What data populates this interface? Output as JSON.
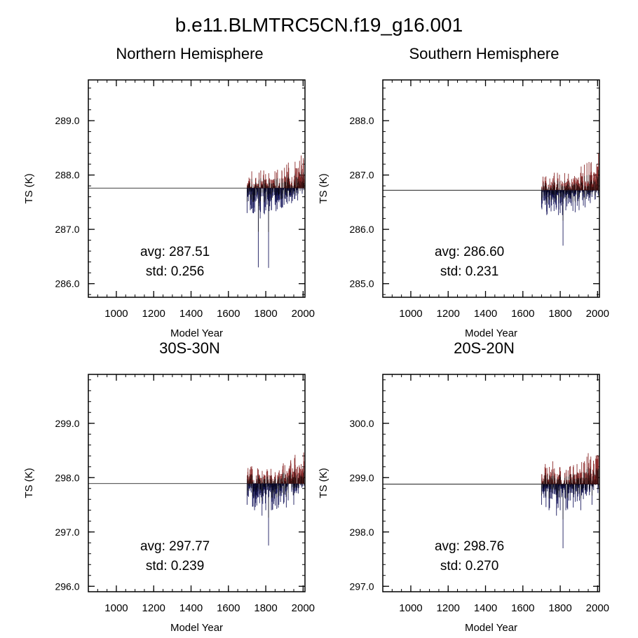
{
  "figure": {
    "title": "b.e11.BLMTRC5CN.f19_g16.001"
  },
  "chart_data": [
    {
      "type": "bar",
      "title": "Northern Hemisphere",
      "xlabel": "Model Year",
      "ylabel": "TS (K)",
      "xlim": [
        850,
        2010
      ],
      "ylim": [
        285.75,
        289.75
      ],
      "xticks": [
        1000,
        1200,
        1400,
        1600,
        1800,
        2000
      ],
      "yticks": [
        286.0,
        287.0,
        288.0,
        289.0
      ],
      "ytick_labels": [
        "286.0",
        "287.0",
        "288.0",
        "289.0"
      ],
      "reference_line": 287.76,
      "data_start_year": 1700,
      "data_end_year": 2005,
      "stats": {
        "avg_label": "avg: 287.51",
        "std_label": "std:  0.256"
      },
      "above_color": "#8b2a2a",
      "below_color": "#1a1a5e",
      "anomaly_points": [
        {
          "x": 1700,
          "y": 287.3
        },
        {
          "x": 1720,
          "y": 287.45
        },
        {
          "x": 1740,
          "y": 287.4
        },
        {
          "x": 1760,
          "y": 286.3
        },
        {
          "x": 1770,
          "y": 287.2
        },
        {
          "x": 1790,
          "y": 287.3
        },
        {
          "x": 1800,
          "y": 287.35
        },
        {
          "x": 1815,
          "y": 286.29
        },
        {
          "x": 1830,
          "y": 287.35
        },
        {
          "x": 1850,
          "y": 287.45
        },
        {
          "x": 1870,
          "y": 287.5
        },
        {
          "x": 1890,
          "y": 287.4
        },
        {
          "x": 1910,
          "y": 287.5
        },
        {
          "x": 1930,
          "y": 287.6
        },
        {
          "x": 1950,
          "y": 287.7
        },
        {
          "x": 1970,
          "y": 287.8
        },
        {
          "x": 1985,
          "y": 287.95
        },
        {
          "x": 2000,
          "y": 288.2
        }
      ]
    },
    {
      "type": "bar",
      "title": "Southern Hemisphere",
      "xlabel": "Model Year",
      "ylabel": "TS (K)",
      "xlim": [
        850,
        2010
      ],
      "ylim": [
        284.75,
        288.75
      ],
      "xticks": [
        1000,
        1200,
        1400,
        1600,
        1800,
        2000
      ],
      "yticks": [
        285.0,
        286.0,
        287.0,
        288.0
      ],
      "ytick_labels": [
        "285.0",
        "286.0",
        "287.0",
        "288.0"
      ],
      "reference_line": 286.72,
      "data_start_year": 1700,
      "data_end_year": 2005,
      "stats": {
        "avg_label": "avg: 286.60",
        "std_label": "std:  0.231"
      },
      "above_color": "#8b2a2a",
      "below_color": "#1a1a5e",
      "anomaly_points": [
        {
          "x": 1700,
          "y": 286.4
        },
        {
          "x": 1720,
          "y": 286.45
        },
        {
          "x": 1740,
          "y": 286.5
        },
        {
          "x": 1760,
          "y": 286.9
        },
        {
          "x": 1780,
          "y": 286.4
        },
        {
          "x": 1800,
          "y": 286.3
        },
        {
          "x": 1815,
          "y": 285.7
        },
        {
          "x": 1830,
          "y": 286.35
        },
        {
          "x": 1850,
          "y": 286.5
        },
        {
          "x": 1870,
          "y": 286.8
        },
        {
          "x": 1900,
          "y": 286.85
        },
        {
          "x": 1930,
          "y": 286.9
        },
        {
          "x": 1960,
          "y": 287.0
        },
        {
          "x": 1980,
          "y": 287.05
        },
        {
          "x": 1995,
          "y": 287.2
        },
        {
          "x": 2005,
          "y": 287.4
        }
      ]
    },
    {
      "type": "bar",
      "title": "30S-30N",
      "xlabel": "Model Year",
      "ylabel": "TS (K)",
      "xlim": [
        850,
        2010
      ],
      "ylim": [
        295.9,
        299.9
      ],
      "xticks": [
        1000,
        1200,
        1400,
        1600,
        1800,
        2000
      ],
      "yticks": [
        296.0,
        297.0,
        298.0,
        299.0
      ],
      "ytick_labels": [
        "296.0",
        "297.0",
        "298.0",
        "299.0"
      ],
      "reference_line": 297.89,
      "data_start_year": 1700,
      "data_end_year": 2005,
      "stats": {
        "avg_label": "avg: 297.77",
        "std_label": "std:  0.239"
      },
      "above_color": "#8b2a2a",
      "below_color": "#1a1a5e",
      "anomaly_points": [
        {
          "x": 1700,
          "y": 297.5
        },
        {
          "x": 1720,
          "y": 298.2
        },
        {
          "x": 1740,
          "y": 297.4
        },
        {
          "x": 1760,
          "y": 298.15
        },
        {
          "x": 1780,
          "y": 297.3
        },
        {
          "x": 1800,
          "y": 297.4
        },
        {
          "x": 1815,
          "y": 296.75
        },
        {
          "x": 1830,
          "y": 297.4
        },
        {
          "x": 1850,
          "y": 298.1
        },
        {
          "x": 1870,
          "y": 297.5
        },
        {
          "x": 1890,
          "y": 298.15
        },
        {
          "x": 1910,
          "y": 297.45
        },
        {
          "x": 1930,
          "y": 298.15
        },
        {
          "x": 1950,
          "y": 297.5
        },
        {
          "x": 1970,
          "y": 298.2
        },
        {
          "x": 1990,
          "y": 298.25
        },
        {
          "x": 2005,
          "y": 298.3
        }
      ]
    },
    {
      "type": "bar",
      "title": "20S-20N",
      "xlabel": "Model Year",
      "ylabel": "TS (K)",
      "xlim": [
        850,
        2010
      ],
      "ylim": [
        296.9,
        300.9
      ],
      "xticks": [
        1000,
        1200,
        1400,
        1600,
        1800,
        2000
      ],
      "yticks": [
        297.0,
        298.0,
        299.0,
        300.0
      ],
      "ytick_labels": [
        "297.0",
        "298.0",
        "299.0",
        "300.0"
      ],
      "reference_line": 298.88,
      "data_start_year": 1700,
      "data_end_year": 2005,
      "stats": {
        "avg_label": "avg: 298.76",
        "std_label": "std:  0.270"
      },
      "above_color": "#8b2a2a",
      "below_color": "#1a1a5e",
      "anomaly_points": [
        {
          "x": 1700,
          "y": 298.5
        },
        {
          "x": 1720,
          "y": 299.25
        },
        {
          "x": 1740,
          "y": 298.4
        },
        {
          "x": 1760,
          "y": 299.3
        },
        {
          "x": 1780,
          "y": 298.3
        },
        {
          "x": 1800,
          "y": 298.4
        },
        {
          "x": 1815,
          "y": 297.7
        },
        {
          "x": 1830,
          "y": 298.4
        },
        {
          "x": 1850,
          "y": 299.2
        },
        {
          "x": 1870,
          "y": 298.45
        },
        {
          "x": 1890,
          "y": 299.25
        },
        {
          "x": 1910,
          "y": 298.4
        },
        {
          "x": 1930,
          "y": 299.3
        },
        {
          "x": 1950,
          "y": 299.45
        },
        {
          "x": 1970,
          "y": 298.5
        },
        {
          "x": 1990,
          "y": 299.35
        },
        {
          "x": 2005,
          "y": 299.4
        }
      ]
    }
  ]
}
